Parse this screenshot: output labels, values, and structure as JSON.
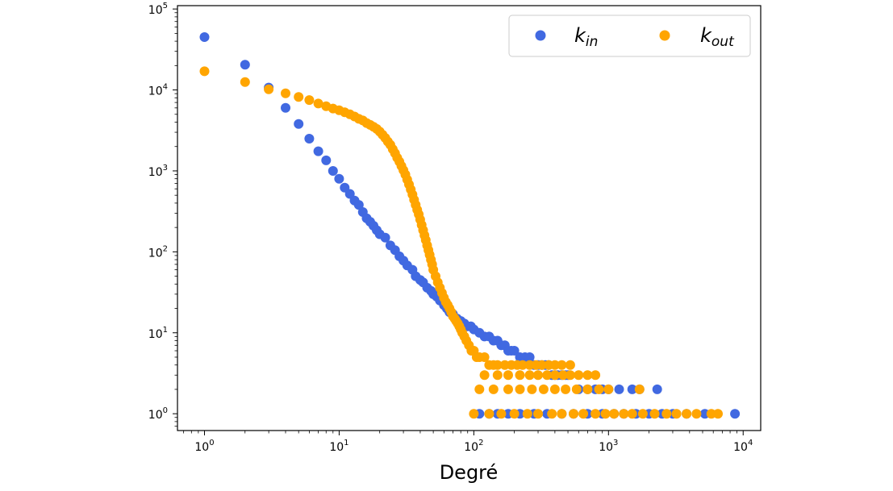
{
  "chart_data": {
    "type": "scatter",
    "title": "",
    "xlabel": "Degré",
    "ylabel": "",
    "xscale": "log",
    "yscale": "log",
    "xlim": [
      0.63,
      13500
    ],
    "ylim": [
      0.62,
      110000
    ],
    "grid": false,
    "legend_position": "top-right",
    "x_ticks": [
      {
        "base": "10",
        "exp": "0",
        "value": 1
      },
      {
        "base": "10",
        "exp": "1",
        "value": 10
      },
      {
        "base": "10",
        "exp": "2",
        "value": 100
      },
      {
        "base": "10",
        "exp": "3",
        "value": 1000
      },
      {
        "base": "10",
        "exp": "4",
        "value": 10000
      }
    ],
    "y_ticks": [
      {
        "base": "10",
        "exp": "0",
        "value": 1
      },
      {
        "base": "10",
        "exp": "1",
        "value": 10
      },
      {
        "base": "10",
        "exp": "2",
        "value": 100
      },
      {
        "base": "10",
        "exp": "3",
        "value": 1000
      },
      {
        "base": "10",
        "exp": "4",
        "value": 10000
      },
      {
        "base": "10",
        "exp": "5",
        "value": 100000
      }
    ],
    "series": [
      {
        "name": "k",
        "name_sub": "in",
        "color": "#4169e1",
        "points": [
          [
            1,
            45000
          ],
          [
            2,
            20500
          ],
          [
            3,
            10700
          ],
          [
            4,
            6000
          ],
          [
            5,
            3800
          ],
          [
            6,
            2500
          ],
          [
            7,
            1750
          ],
          [
            8,
            1350
          ],
          [
            9,
            1000
          ],
          [
            10,
            800
          ],
          [
            11,
            620
          ],
          [
            12,
            520
          ],
          [
            13,
            430
          ],
          [
            14,
            380
          ],
          [
            15,
            310
          ],
          [
            16,
            260
          ],
          [
            17,
            235
          ],
          [
            18,
            210
          ],
          [
            19,
            185
          ],
          [
            20,
            165
          ],
          [
            22,
            150
          ],
          [
            24,
            120
          ],
          [
            26,
            105
          ],
          [
            28,
            88
          ],
          [
            30,
            78
          ],
          [
            32,
            68
          ],
          [
            35,
            60
          ],
          [
            37,
            50
          ],
          [
            40,
            45
          ],
          [
            42,
            42
          ],
          [
            45,
            36
          ],
          [
            48,
            33
          ],
          [
            50,
            30
          ],
          [
            53,
            28
          ],
          [
            56,
            25
          ],
          [
            60,
            22
          ],
          [
            63,
            20
          ],
          [
            66,
            18
          ],
          [
            70,
            17
          ],
          [
            75,
            15
          ],
          [
            80,
            14
          ],
          [
            85,
            13
          ],
          [
            90,
            12
          ],
          [
            95,
            12
          ],
          [
            100,
            11
          ],
          [
            110,
            10
          ],
          [
            120,
            9
          ],
          [
            130,
            9
          ],
          [
            140,
            8
          ],
          [
            150,
            8
          ],
          [
            160,
            7
          ],
          [
            170,
            7
          ],
          [
            180,
            6
          ],
          [
            190,
            6
          ],
          [
            200,
            6
          ],
          [
            220,
            5
          ],
          [
            240,
            5
          ],
          [
            260,
            5
          ],
          [
            280,
            4
          ],
          [
            300,
            4
          ],
          [
            320,
            4
          ],
          [
            340,
            4
          ],
          [
            360,
            4
          ],
          [
            380,
            3
          ],
          [
            400,
            3
          ],
          [
            420,
            3
          ],
          [
            450,
            3
          ],
          [
            480,
            3
          ],
          [
            500,
            3
          ],
          [
            600,
            2
          ],
          [
            700,
            2
          ],
          [
            800,
            2
          ],
          [
            900,
            2
          ],
          [
            1000,
            2
          ],
          [
            1200,
            2
          ],
          [
            1500,
            2
          ],
          [
            1700,
            2
          ],
          [
            2300,
            2
          ],
          [
            5200,
            1
          ],
          [
            8700,
            1
          ],
          [
            3800,
            1
          ],
          [
            3000,
            1
          ],
          [
            2500,
            1
          ],
          [
            2000,
            1
          ],
          [
            1600,
            1
          ],
          [
            1300,
            1
          ],
          [
            1100,
            1
          ],
          [
            900,
            1
          ],
          [
            700,
            1
          ],
          [
            550,
            1
          ],
          [
            450,
            1
          ],
          [
            350,
            1
          ],
          [
            280,
            1
          ],
          [
            220,
            1
          ],
          [
            180,
            1
          ],
          [
            150,
            1
          ],
          [
            130,
            1
          ],
          [
            110,
            1
          ]
        ]
      },
      {
        "name": "k",
        "name_sub": "out",
        "color": "#ffa500",
        "points": [
          [
            1,
            17000
          ],
          [
            2,
            12500
          ],
          [
            3,
            10200
          ],
          [
            4,
            9100
          ],
          [
            5,
            8200
          ],
          [
            6,
            7500
          ],
          [
            7,
            6800
          ],
          [
            8,
            6300
          ],
          [
            9,
            5900
          ],
          [
            10,
            5600
          ],
          [
            11,
            5300
          ],
          [
            12,
            5000
          ],
          [
            13,
            4700
          ],
          [
            14,
            4400
          ],
          [
            15,
            4200
          ],
          [
            16,
            3900
          ],
          [
            17,
            3700
          ],
          [
            18,
            3500
          ],
          [
            19,
            3300
          ],
          [
            20,
            3050
          ],
          [
            21,
            2800
          ],
          [
            22,
            2550
          ],
          [
            23,
            2300
          ],
          [
            24,
            2100
          ],
          [
            25,
            1850
          ],
          [
            26,
            1650
          ],
          [
            27,
            1450
          ],
          [
            28,
            1300
          ],
          [
            29,
            1150
          ],
          [
            30,
            1020
          ],
          [
            31,
            900
          ],
          [
            32,
            780
          ],
          [
            33,
            680
          ],
          [
            34,
            590
          ],
          [
            35,
            510
          ],
          [
            36,
            440
          ],
          [
            37,
            380
          ],
          [
            38,
            330
          ],
          [
            39,
            290
          ],
          [
            40,
            250
          ],
          [
            41,
            215
          ],
          [
            42,
            185
          ],
          [
            43,
            160
          ],
          [
            44,
            140
          ],
          [
            45,
            120
          ],
          [
            46,
            105
          ],
          [
            47,
            92
          ],
          [
            48,
            80
          ],
          [
            49,
            70
          ],
          [
            50,
            60
          ],
          [
            52,
            50
          ],
          [
            54,
            42
          ],
          [
            56,
            36
          ],
          [
            58,
            31
          ],
          [
            60,
            27
          ],
          [
            62,
            24
          ],
          [
            64,
            22
          ],
          [
            66,
            20
          ],
          [
            68,
            18
          ],
          [
            70,
            16
          ],
          [
            72,
            15
          ],
          [
            74,
            14
          ],
          [
            76,
            13
          ],
          [
            78,
            12
          ],
          [
            80,
            11
          ],
          [
            82,
            10
          ],
          [
            85,
            9
          ],
          [
            88,
            8
          ],
          [
            92,
            7
          ],
          [
            96,
            6
          ],
          [
            100,
            6
          ],
          [
            105,
            5
          ],
          [
            110,
            5
          ],
          [
            120,
            5
          ],
          [
            130,
            4
          ],
          [
            140,
            4
          ],
          [
            150,
            4
          ],
          [
            170,
            4
          ],
          [
            190,
            4
          ],
          [
            210,
            4
          ],
          [
            230,
            4
          ],
          [
            260,
            4
          ],
          [
            290,
            4
          ],
          [
            320,
            4
          ],
          [
            360,
            4
          ],
          [
            400,
            4
          ],
          [
            450,
            4
          ],
          [
            520,
            4
          ],
          [
            120,
            3
          ],
          [
            150,
            3
          ],
          [
            180,
            3
          ],
          [
            220,
            3
          ],
          [
            260,
            3
          ],
          [
            300,
            3
          ],
          [
            350,
            3
          ],
          [
            400,
            3
          ],
          [
            460,
            3
          ],
          [
            520,
            3
          ],
          [
            600,
            3
          ],
          [
            700,
            3
          ],
          [
            800,
            3
          ],
          [
            110,
            2
          ],
          [
            140,
            2
          ],
          [
            180,
            2
          ],
          [
            220,
            2
          ],
          [
            270,
            2
          ],
          [
            330,
            2
          ],
          [
            400,
            2
          ],
          [
            480,
            2
          ],
          [
            580,
            2
          ],
          [
            700,
            2
          ],
          [
            850,
            2
          ],
          [
            1000,
            2
          ],
          [
            1700,
            2
          ],
          [
            100,
            1
          ],
          [
            130,
            1
          ],
          [
            160,
            1
          ],
          [
            200,
            1
          ],
          [
            250,
            1
          ],
          [
            300,
            1
          ],
          [
            380,
            1
          ],
          [
            450,
            1
          ],
          [
            550,
            1
          ],
          [
            650,
            1
          ],
          [
            800,
            1
          ],
          [
            950,
            1
          ],
          [
            1100,
            1
          ],
          [
            1300,
            1
          ],
          [
            1500,
            1
          ],
          [
            1800,
            1
          ],
          [
            2200,
            1
          ],
          [
            2700,
            1
          ],
          [
            3200,
            1
          ],
          [
            3800,
            1
          ],
          [
            4500,
            1
          ],
          [
            5800,
            1
          ],
          [
            6500,
            1
          ]
        ]
      }
    ]
  }
}
